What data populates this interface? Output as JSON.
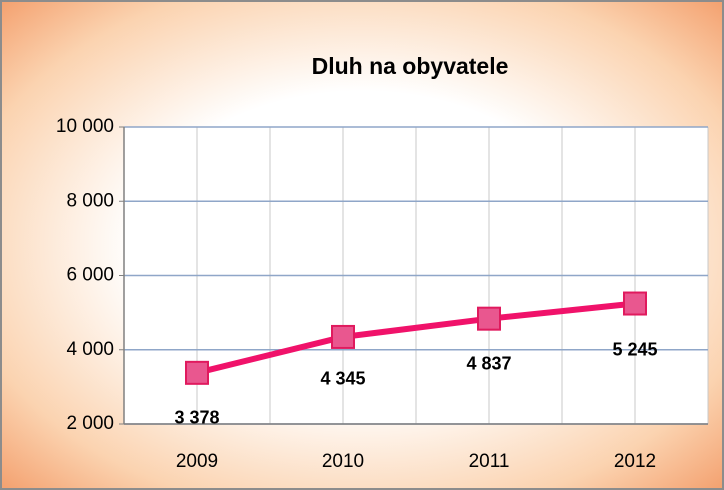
{
  "chart_data": {
    "type": "line",
    "title": "Dluh na obyvatele",
    "categories": [
      "2009",
      "2010",
      "2011",
      "2012"
    ],
    "series": [
      {
        "name": "Dluh na obyvatele",
        "color": "#f0126a",
        "values": [
          3378,
          4345,
          4837,
          5245
        ],
        "value_labels": [
          "3 378",
          "4 345",
          "4 837",
          "5 245"
        ]
      }
    ],
    "ylim": [
      2000,
      10000
    ],
    "yticks": [
      {
        "value": 2000,
        "label": "2 000"
      },
      {
        "value": 4000,
        "label": "4 000"
      },
      {
        "value": 6000,
        "label": "6 000"
      },
      {
        "value": 8000,
        "label": "8 000"
      },
      {
        "value": 10000,
        "label": "10 000"
      }
    ],
    "grid": true
  }
}
